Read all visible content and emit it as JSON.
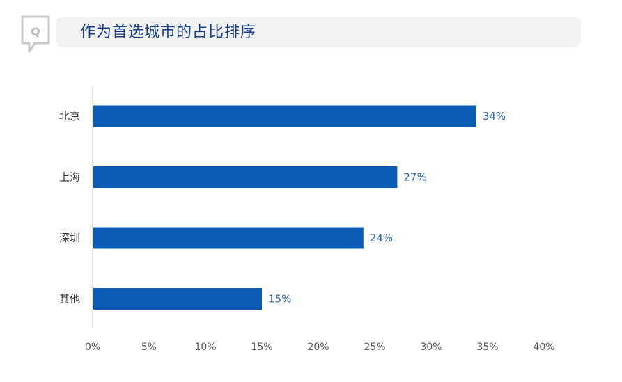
{
  "header": {
    "icon_letter": "Q",
    "title": "作为首选城市的占比排序"
  },
  "colors": {
    "bar": "#0a5cb5",
    "value_label": "#2b66b8",
    "title": "#1a3f8a",
    "header_bg": "#f2f2f2"
  },
  "chart_data": {
    "type": "bar",
    "orientation": "horizontal",
    "categories": [
      "北京",
      "上海",
      "深圳",
      "其他"
    ],
    "values": [
      34,
      27,
      24,
      15
    ],
    "value_labels": [
      "34%",
      "27%",
      "24%",
      "15%"
    ],
    "xlim": [
      0,
      40
    ],
    "xticks": [
      0,
      5,
      10,
      15,
      20,
      25,
      30,
      35,
      40
    ],
    "xtick_labels": [
      "0%",
      "5%",
      "10%",
      "15%",
      "20%",
      "25%",
      "30%",
      "35%",
      "40%"
    ],
    "grid": false,
    "legend": "none"
  }
}
